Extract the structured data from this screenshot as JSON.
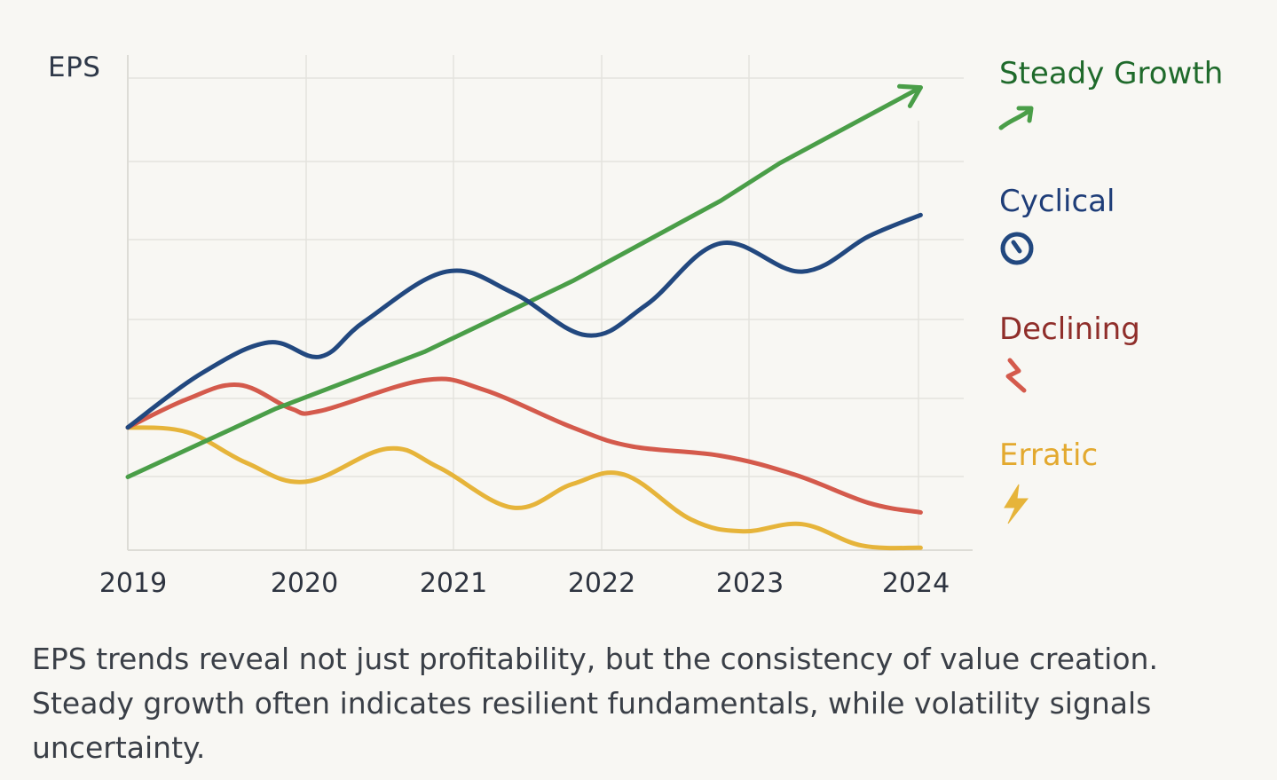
{
  "chart_data": {
    "type": "line",
    "title": "",
    "ylabel": "EPS",
    "xlabel": "",
    "x": [
      2019,
      2019.5,
      2020,
      2020.5,
      2021,
      2021.5,
      2022,
      2022.5,
      2023,
      2023.5,
      2024.35
    ],
    "xticks": [
      "2019",
      "2020",
      "2021",
      "2022",
      "2023",
      "2024"
    ],
    "ylim": [
      0,
      10
    ],
    "grid": true,
    "legend_position": "right",
    "series": [
      {
        "name": "Steady Growth",
        "color": "#4a9e48",
        "label_color": "#1f6a2b",
        "icon": "arrow-up-right-icon",
        "x": [
          2019,
          2020,
          2021,
          2022,
          2023,
          2023.4,
          2024.35
        ],
        "values": [
          1.55,
          3.0,
          4.2,
          5.7,
          7.4,
          8.2,
          9.8
        ]
      },
      {
        "name": "Cyclical",
        "color": "#22487f",
        "label_color": "#1e3d78",
        "icon": "clock-icon",
        "x": [
          2019,
          2019.5,
          2019.95,
          2020.3,
          2020.6,
          2021.15,
          2021.6,
          2022.1,
          2022.5,
          2023.0,
          2023.55,
          2024.0,
          2024.35
        ],
        "values": [
          2.6,
          3.75,
          4.4,
          4.1,
          4.85,
          5.9,
          5.45,
          4.55,
          5.2,
          6.5,
          5.9,
          6.65,
          7.1
        ]
      },
      {
        "name": "Declining",
        "color": "#d45a4c",
        "label_color": "#8f2e2a",
        "icon": "zigzag-down-icon",
        "x": [
          2019,
          2019.4,
          2019.75,
          2020.1,
          2020.3,
          2021.0,
          2021.4,
          2022.0,
          2022.4,
          2023.0,
          2023.5,
          2024.0,
          2024.35
        ],
        "values": [
          2.6,
          3.2,
          3.5,
          3.0,
          2.95,
          3.6,
          3.4,
          2.6,
          2.2,
          2.0,
          1.6,
          1.0,
          0.8
        ]
      },
      {
        "name": "Erratic",
        "color": "#e6b43a",
        "label_color": "#e3a92f",
        "icon": "lightning-icon",
        "x": [
          2019,
          2019.4,
          2019.8,
          2020.2,
          2020.75,
          2021.1,
          2021.6,
          2022.0,
          2022.35,
          2022.8,
          2023.15,
          2023.55,
          2023.95,
          2024.35
        ],
        "values": [
          2.6,
          2.5,
          1.85,
          1.45,
          2.15,
          1.75,
          0.9,
          1.4,
          1.6,
          0.65,
          0.4,
          0.55,
          0.1,
          0.05
        ]
      }
    ]
  },
  "caption": "EPS trends reveal not just profitability, but the consistency of value creation. Steady growth often indicates resilient fundamentals, while volatility signals uncertainty."
}
